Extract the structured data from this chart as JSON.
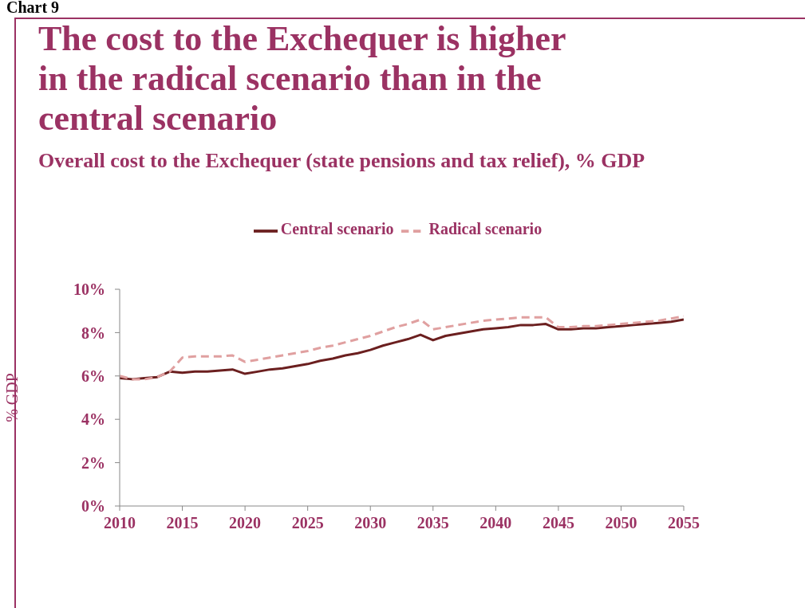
{
  "chart_data": {
    "type": "line",
    "title": "The cost to the Exchequer is higher in the radical scenario than in the central scenario",
    "subtitle": "Overall cost to the Exchequer (state pensions and tax relief), % GDP",
    "ylabel": "% GDP",
    "annotations": [
      "Chart 9"
    ],
    "x": [
      2010,
      2011,
      2012,
      2013,
      2014,
      2015,
      2016,
      2017,
      2018,
      2019,
      2020,
      2021,
      2022,
      2023,
      2024,
      2025,
      2026,
      2027,
      2028,
      2029,
      2030,
      2031,
      2032,
      2033,
      2034,
      2035,
      2036,
      2037,
      2038,
      2039,
      2040,
      2041,
      2042,
      2043,
      2044,
      2045,
      2046,
      2047,
      2048,
      2049,
      2050,
      2051,
      2052,
      2053,
      2054,
      2055
    ],
    "series": [
      {
        "name": "Central scenario",
        "color": "#6b1f1f",
        "line_style": "solid",
        "values": [
          5.9,
          5.85,
          5.9,
          5.95,
          6.2,
          6.15,
          6.2,
          6.2,
          6.25,
          6.3,
          6.1,
          6.2,
          6.3,
          6.35,
          6.45,
          6.55,
          6.7,
          6.8,
          6.95,
          7.05,
          7.2,
          7.4,
          7.55,
          7.7,
          7.9,
          7.65,
          7.85,
          7.95,
          8.05,
          8.15,
          8.2,
          8.25,
          8.35,
          8.35,
          8.4,
          8.15,
          8.15,
          8.2,
          8.2,
          8.25,
          8.3,
          8.35,
          8.4,
          8.45,
          8.5,
          8.6
        ]
      },
      {
        "name": "Radical scenario",
        "color": "#e0a0a0",
        "line_style": "dashed",
        "values": [
          6.0,
          5.85,
          5.85,
          5.95,
          6.2,
          6.85,
          6.9,
          6.9,
          6.9,
          6.95,
          6.65,
          6.75,
          6.85,
          6.95,
          7.05,
          7.15,
          7.3,
          7.4,
          7.55,
          7.7,
          7.85,
          8.05,
          8.25,
          8.4,
          8.6,
          8.15,
          8.25,
          8.35,
          8.45,
          8.55,
          8.6,
          8.65,
          8.7,
          8.7,
          8.7,
          8.25,
          8.25,
          8.3,
          8.3,
          8.35,
          8.4,
          8.45,
          8.5,
          8.55,
          8.65,
          8.75
        ]
      }
    ],
    "xlim": [
      2010,
      2055
    ],
    "xticks": [
      2010,
      2015,
      2020,
      2025,
      2030,
      2035,
      2040,
      2045,
      2050,
      2055
    ],
    "ylim": [
      0,
      10
    ],
    "yticks": [
      {
        "value": 0,
        "label": "0%"
      },
      {
        "value": 2,
        "label": "2%"
      },
      {
        "value": 4,
        "label": "4%"
      },
      {
        "value": 6,
        "label": "6%"
      },
      {
        "value": 8,
        "label": "8%"
      },
      {
        "value": 10,
        "label": "10%"
      }
    ],
    "grid": false,
    "legend": "top",
    "marker": "none"
  }
}
